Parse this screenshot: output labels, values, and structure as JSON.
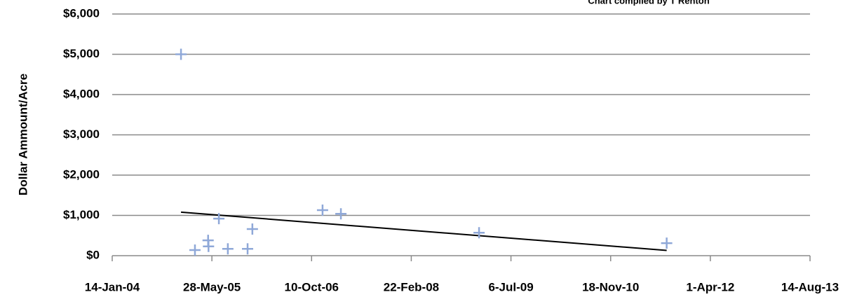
{
  "chart_data": {
    "type": "scatter",
    "subtitle": "Chart compiled by T Renton",
    "y_label": "Dollar Ammount/Acre",
    "color": "#8fa8d8",
    "grid": true,
    "x": [
      "2004-12-24",
      "2005-03-04",
      "2005-05-09",
      "2005-05-11",
      "2005-07-02",
      "2005-08-16",
      "2005-11-23",
      "2005-12-17",
      "2006-12-04",
      "2007-03-06",
      "2009-01-27",
      "2011-08-26"
    ],
    "values": [
      5000,
      140,
      380,
      230,
      920,
      170,
      170,
      660,
      1130,
      1040,
      570,
      310
    ],
    "trendline": {
      "color": "#000000",
      "x": [
        "2004-12-24",
        "2011-08-26"
      ],
      "values": [
        1080,
        130
      ]
    },
    "xlim": [
      "2004-01-14",
      "2013-08-14"
    ],
    "xticks": [
      {
        "value": "2004-01-14",
        "label": "14-Jan-04"
      },
      {
        "value": "2005-05-28",
        "label": "28-May-05"
      },
      {
        "value": "2006-10-10",
        "label": "10-Oct-06"
      },
      {
        "value": "2008-02-22",
        "label": "22-Feb-08"
      },
      {
        "value": "2009-07-06",
        "label": "6-Jul-09"
      },
      {
        "value": "2010-11-18",
        "label": "18-Nov-10"
      },
      {
        "value": "2012-04-01",
        "label": "1-Apr-12"
      },
      {
        "value": "2013-08-14",
        "label": "14-Aug-13"
      }
    ],
    "ylim": [
      0,
      6000
    ],
    "yticks": [
      {
        "value": 0,
        "label": "$0"
      },
      {
        "value": 1000,
        "label": "$1,000"
      },
      {
        "value": 2000,
        "label": "$2,000"
      },
      {
        "value": 3000,
        "label": "$3,000"
      },
      {
        "value": 4000,
        "label": "$4,000"
      },
      {
        "value": 5000,
        "label": "$5,000"
      },
      {
        "value": 6000,
        "label": "$6,000"
      }
    ]
  }
}
